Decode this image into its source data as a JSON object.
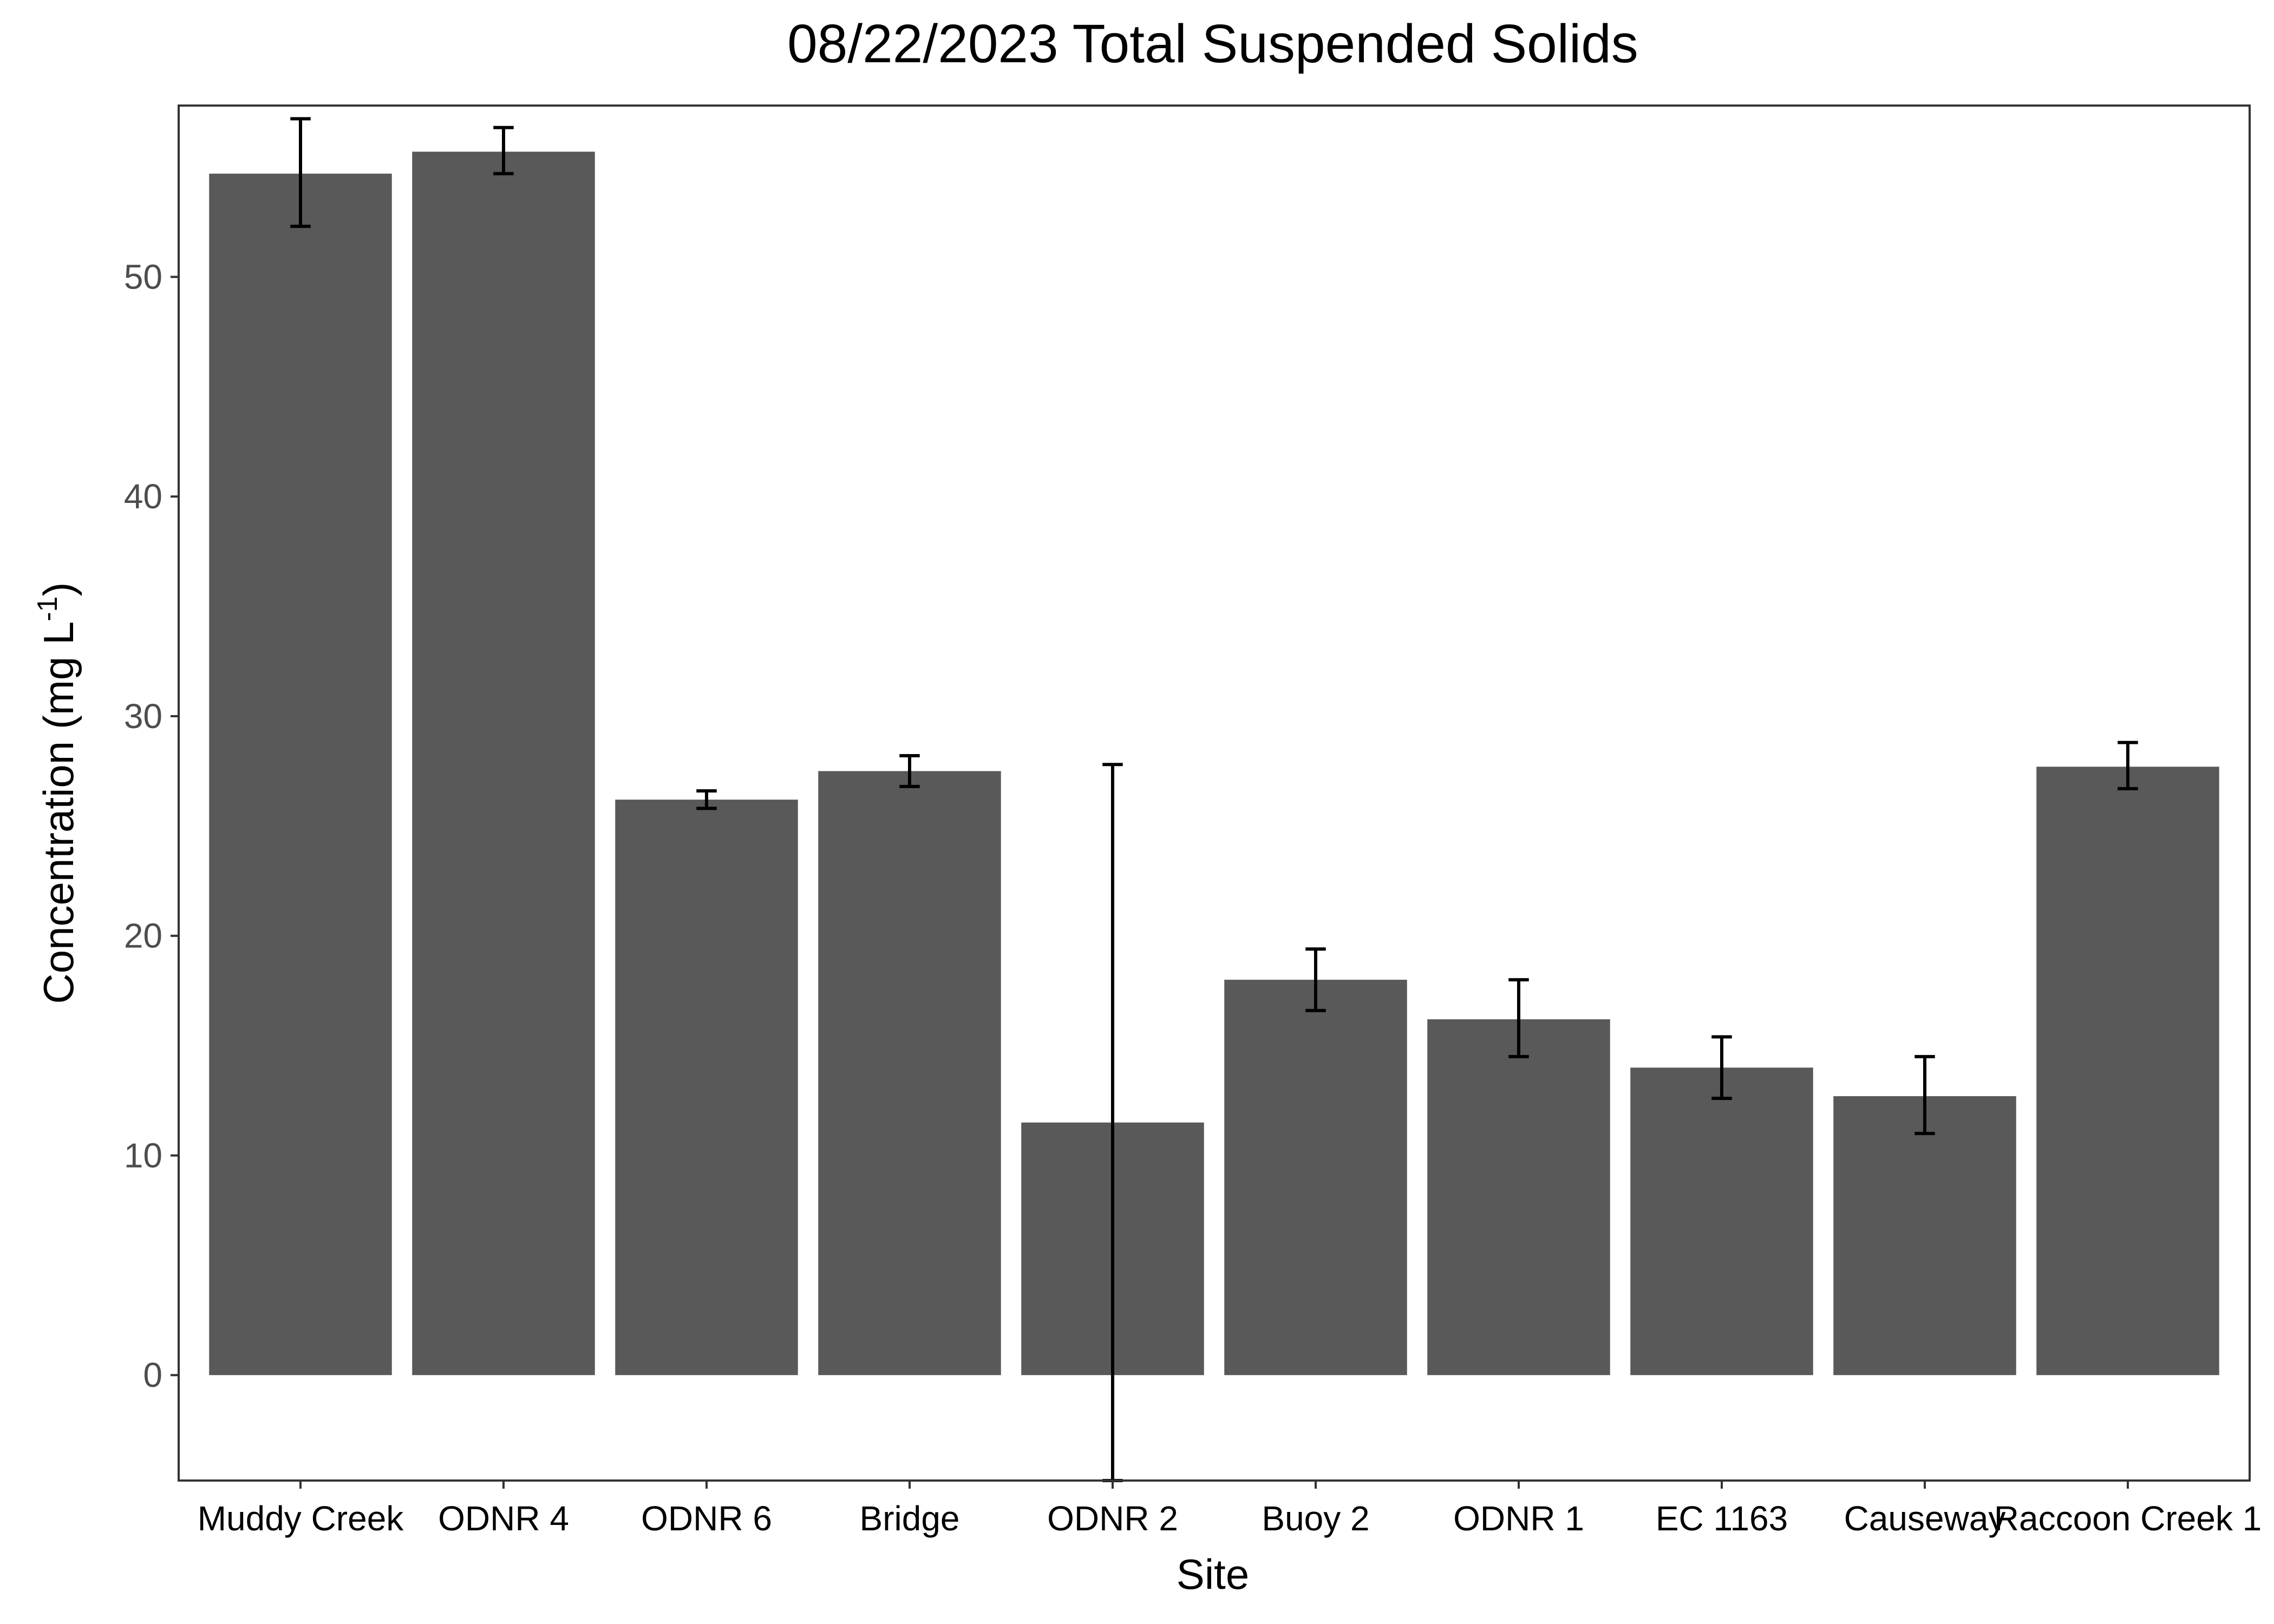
{
  "chart_data": {
    "type": "bar",
    "title": "08/22/2023 Total Suspended Solids",
    "xlabel": "Site",
    "ylabel": "Concentration (mg L",
    "ylabel_superscript": "-1",
    "ylabel_close": ")",
    "categories": [
      "Muddy Creek",
      "ODNR 4",
      "ODNR 6",
      "Bridge",
      "ODNR 2",
      "Buoy 2",
      "ODNR 1",
      "EC 1163",
      "Causeway",
      "Raccoon Creek 1"
    ],
    "values": [
      54.7,
      55.7,
      26.2,
      27.5,
      11.5,
      18.0,
      16.2,
      14.0,
      12.7,
      27.7
    ],
    "error_low": [
      52.3,
      54.7,
      25.8,
      26.8,
      -4.8,
      16.6,
      14.5,
      12.6,
      11.0,
      26.7
    ],
    "error_high": [
      57.2,
      56.8,
      26.6,
      28.2,
      27.8,
      19.4,
      18.0,
      15.4,
      14.5,
      28.8
    ],
    "yticks": [
      0,
      10,
      20,
      30,
      40,
      50
    ],
    "ylim": [
      -4.8,
      57.8
    ],
    "grid": false,
    "bar_color": "#595959",
    "error_color": "#000000",
    "panel_border_color": "#333333"
  }
}
